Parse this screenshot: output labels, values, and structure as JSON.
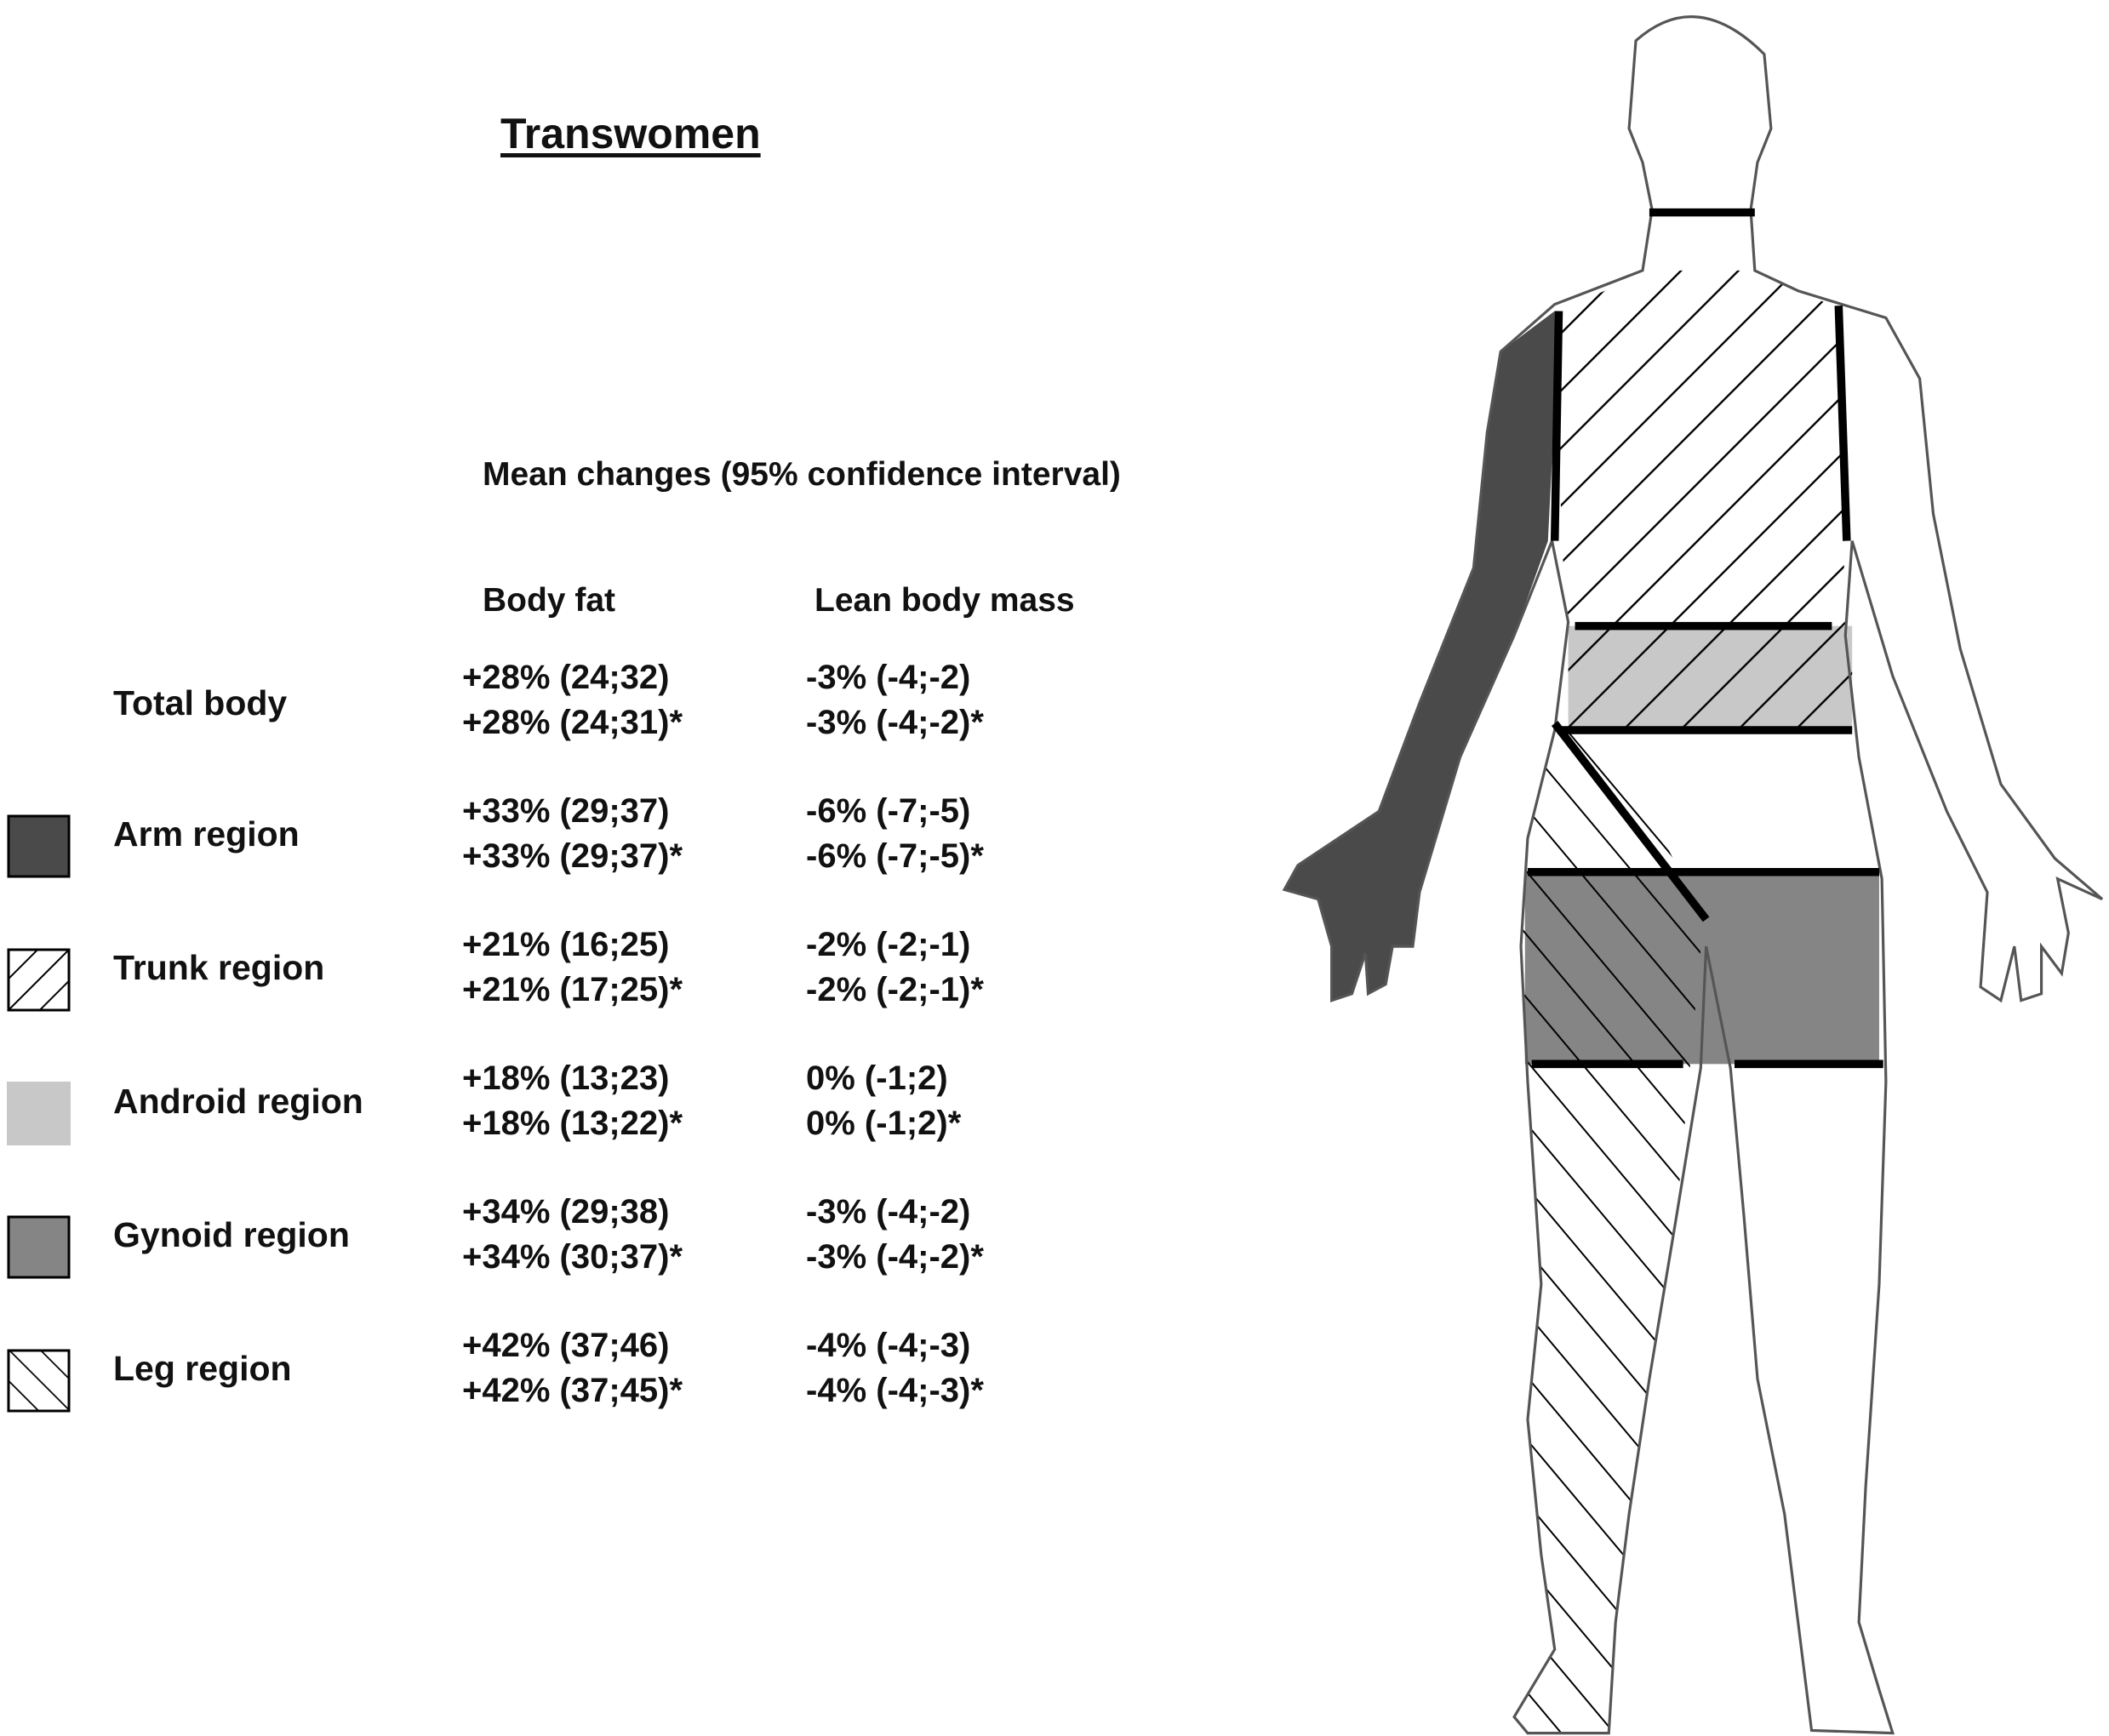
{
  "title": "Transwomen",
  "subtitle": "Mean changes (95% confidence interval)",
  "columns": {
    "body_fat": "Body fat",
    "lean_mass": "Lean body mass"
  },
  "rows": [
    {
      "label": "Total body",
      "swatch": "none",
      "body_fat": [
        "+28% (24;32)",
        "+28% (24;31)*"
      ],
      "lean_mass": [
        "-3% (-4;-2)",
        "-3% (-4;-2)*"
      ]
    },
    {
      "label": "Arm region",
      "swatch": "dark-gray",
      "body_fat": [
        "+33% (29;37)",
        "+33% (29;37)*"
      ],
      "lean_mass": [
        "-6% (-7;-5)",
        "-6% (-7;-5)*"
      ]
    },
    {
      "label": "Trunk region",
      "swatch": "hatch-forward",
      "body_fat": [
        "+21% (16;25)",
        "+21% (17;25)*"
      ],
      "lean_mass": [
        "-2% (-2;-1)",
        "-2% (-2;-1)*"
      ]
    },
    {
      "label": "Android region",
      "swatch": "light-gray",
      "body_fat": [
        "+18% (13;23)",
        "+18% (13;22)*"
      ],
      "lean_mass": [
        "0% (-1;2)",
        "0% (-1;2)*"
      ]
    },
    {
      "label": "Gynoid region",
      "swatch": "mid-gray",
      "body_fat": [
        "+34% (29;38)",
        "+34% (30;37)*"
      ],
      "lean_mass": [
        "-3% (-4;-2)",
        "-3% (-4;-2)*"
      ]
    },
    {
      "label": "Leg region",
      "swatch": "hatch-backward",
      "body_fat": [
        "+42% (37;46)",
        "+42% (37;45)*"
      ],
      "lean_mass": [
        "-4% (-4;-3)",
        "-4% (-4;-3)*"
      ]
    }
  ],
  "colors": {
    "arm": "#4a4a4a",
    "android": "#c8c8c8",
    "gynoid": "#858585",
    "outline": "#555555",
    "line": "#000000"
  }
}
